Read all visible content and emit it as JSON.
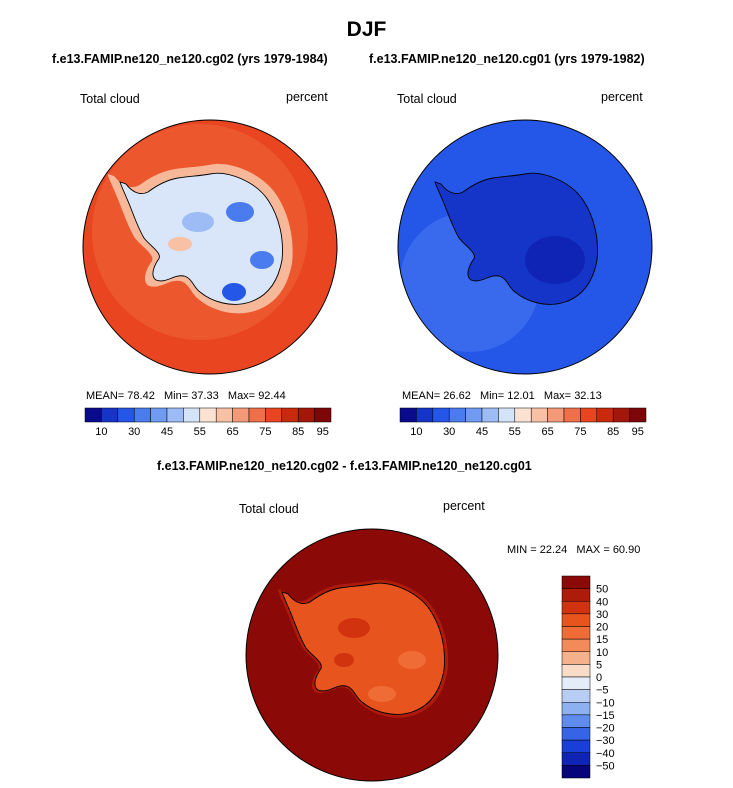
{
  "header": {
    "title": "DJF",
    "panel1_title": "f.e13.FAMIP.ne120_ne120.cg02 (yrs 1979-1984)",
    "panel2_title": "f.e13.FAMIP.ne120_ne120.cg01 (yrs 1979-1982)",
    "diff_title": "f.e13.FAMIP.ne120_ne120.cg02 - f.e13.FAMIP.ne120_ne120.cg01"
  },
  "chart_data": [
    {
      "type": "heatmap",
      "title": "f.e13.FAMIP.ne120_ne120.cg02 (yrs 1979-1984)",
      "variable": "Total cloud",
      "units": "percent",
      "stats": {
        "mean_label": "MEAN=",
        "mean": "78.42",
        "min_label": "Min=",
        "min": "37.33",
        "max_label": "Max=",
        "max": "92.44"
      },
      "colorbar_labels": [
        "10",
        "30",
        "45",
        "55",
        "65",
        "75",
        "85",
        "95"
      ]
    },
    {
      "type": "heatmap",
      "title": "f.e13.FAMIP.ne120_ne120.cg01 (yrs 1979-1982)",
      "variable": "Total cloud",
      "units": "percent",
      "stats": {
        "mean_label": "MEAN=",
        "mean": "26.62",
        "min_label": "Min=",
        "min": "12.01",
        "max_label": "Max=",
        "max": "32.13"
      },
      "colorbar_labels": [
        "10",
        "30",
        "45",
        "55",
        "65",
        "75",
        "85",
        "95"
      ]
    },
    {
      "type": "heatmap",
      "title": "f.e13.FAMIP.ne120_ne120.cg02 - f.e13.FAMIP.ne120_ne120.cg01",
      "variable": "Total cloud",
      "units": "percent",
      "stats": {
        "min_label": "MIN =",
        "min": "22.24",
        "max_label": "MAX =",
        "max": "60.90"
      },
      "colorbar_labels": [
        "50",
        "40",
        "30",
        "20",
        "15",
        "10",
        "5",
        "0",
        "−5",
        "−10",
        "−15",
        "−20",
        "−30",
        "−40",
        "−50"
      ]
    }
  ],
  "colors": {
    "abs_scale": [
      "#0a0a8c",
      "#1535c8",
      "#2456e8",
      "#4a7cf0",
      "#6f9bf2",
      "#9dbcf5",
      "#d3e3f8",
      "#fbe2d2",
      "#f8c0a4",
      "#f49a78",
      "#ef7048",
      "#e84520",
      "#c92a0c",
      "#a3160a",
      "#7d0708"
    ],
    "diff_scale": [
      "#8b0a08",
      "#ad1c0a",
      "#d2330f",
      "#e8541e",
      "#f06c36",
      "#f28a5a",
      "#f5b08c",
      "#f9dcc8",
      "#e4ecf8",
      "#b8cdf4",
      "#8db0f0",
      "#5f8ced",
      "#3565e6",
      "#1a3fd8",
      "#0f24b4",
      "#06067a"
    ]
  }
}
